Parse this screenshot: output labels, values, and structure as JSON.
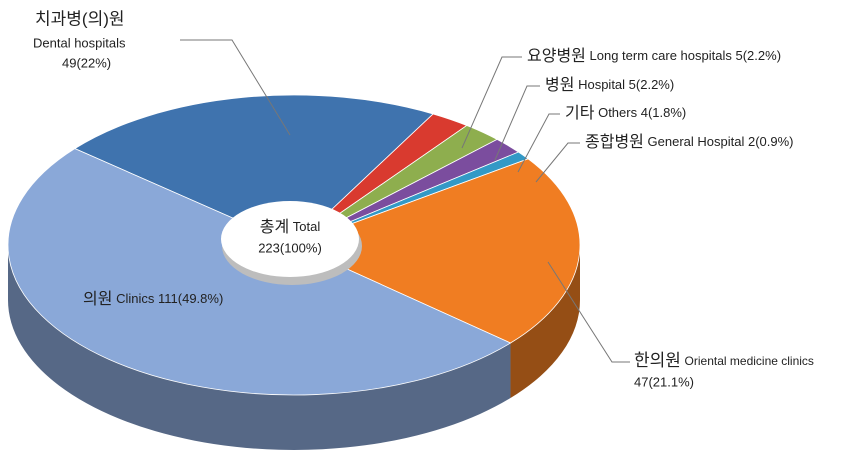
{
  "chart_data": {
    "type": "pie",
    "categories": [
      "치과병(의)원",
      "요양병원",
      "병원",
      "기타",
      "종합병원",
      "한의원",
      "의원"
    ],
    "categories_en": [
      "Dental hospitals",
      "Long term care hospitals",
      "Hospital",
      "Others",
      "General Hospital",
      "Oriental medicine clinics",
      "Clinics"
    ],
    "values": [
      49,
      5,
      5,
      4,
      2,
      47,
      111
    ],
    "value_labels": [
      "49(22%)",
      "5(2.2%)",
      "5(2.2%)",
      "4(1.8%)",
      "2(0.9%)",
      "47(21.1%)",
      "111(49.8%)"
    ],
    "colors": [
      "#3f73ae",
      "#d93a2f",
      "#8eae4e",
      "#7b4d9e",
      "#3399c6",
      "#f07d22",
      "#8aa8d8"
    ],
    "center_label": [
      "총계",
      "Total"
    ],
    "center_value_label": "223(100%)"
  }
}
